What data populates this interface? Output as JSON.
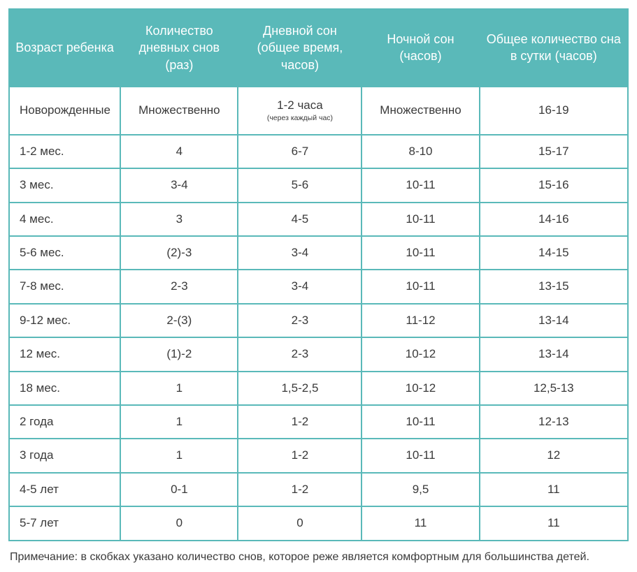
{
  "table": {
    "type": "table",
    "header_bg": "#5ab9b9",
    "header_text_color": "#ffffff",
    "border_color": "#5ab9b9",
    "cell_text_color": "#3a3a3a",
    "background_color": "#ffffff",
    "header_fontsize": 18,
    "cell_fontsize": 17,
    "subtext_fontsize": 10.5,
    "footnote_fontsize": 16,
    "columns": [
      "Возраст ребенка",
      "Количество дневных снов (раз)",
      "Дневной сон (общее время, часов)",
      "Ночной сон (часов)",
      "Общее количество сна в сутки (часов)"
    ],
    "rows": [
      {
        "age": "Новорожденные",
        "naps": "Множественно",
        "day_main": "1-2 часа",
        "day_sub": "(через каждый час)",
        "night": "Множественно",
        "total": "16-19"
      },
      {
        "age": "1-2 мес.",
        "naps": "4",
        "day_main": "6-7",
        "day_sub": "",
        "night": "8-10",
        "total": "15-17"
      },
      {
        "age": "3 мес.",
        "naps": "3-4",
        "day_main": "5-6",
        "day_sub": "",
        "night": "10-11",
        "total": "15-16"
      },
      {
        "age": "4 мес.",
        "naps": "3",
        "day_main": "4-5",
        "day_sub": "",
        "night": "10-11",
        "total": "14-16"
      },
      {
        "age": "5-6 мес.",
        "naps": "(2)-3",
        "day_main": "3-4",
        "day_sub": "",
        "night": "10-11",
        "total": "14-15"
      },
      {
        "age": "7-8 мес.",
        "naps": "2-3",
        "day_main": "3-4",
        "day_sub": "",
        "night": "10-11",
        "total": "13-15"
      },
      {
        "age": "9-12 мес.",
        "naps": "2-(3)",
        "day_main": "2-3",
        "day_sub": "",
        "night": "11-12",
        "total": "13-14"
      },
      {
        "age": "12 мес.",
        "naps": "(1)-2",
        "day_main": "2-3",
        "day_sub": "",
        "night": "10-12",
        "total": "13-14"
      },
      {
        "age": "18 мес.",
        "naps": "1",
        "day_main": "1,5-2,5",
        "day_sub": "",
        "night": "10-12",
        "total": "12,5-13"
      },
      {
        "age": "2 года",
        "naps": "1",
        "day_main": "1-2",
        "day_sub": "",
        "night": "10-11",
        "total": "12-13"
      },
      {
        "age": "3 года",
        "naps": "1",
        "day_main": "1-2",
        "day_sub": "",
        "night": "10-11",
        "total": "12"
      },
      {
        "age": "4-5 лет",
        "naps": "0-1",
        "day_main": "1-2",
        "day_sub": "",
        "night": "9,5",
        "total": "11"
      },
      {
        "age": "5-7 лет",
        "naps": "0",
        "day_main": "0",
        "day_sub": "",
        "night": "11",
        "total": "11"
      }
    ]
  },
  "footnote": "Примечание: в скобках указано количество снов, которое реже является комфортным для большинства детей."
}
